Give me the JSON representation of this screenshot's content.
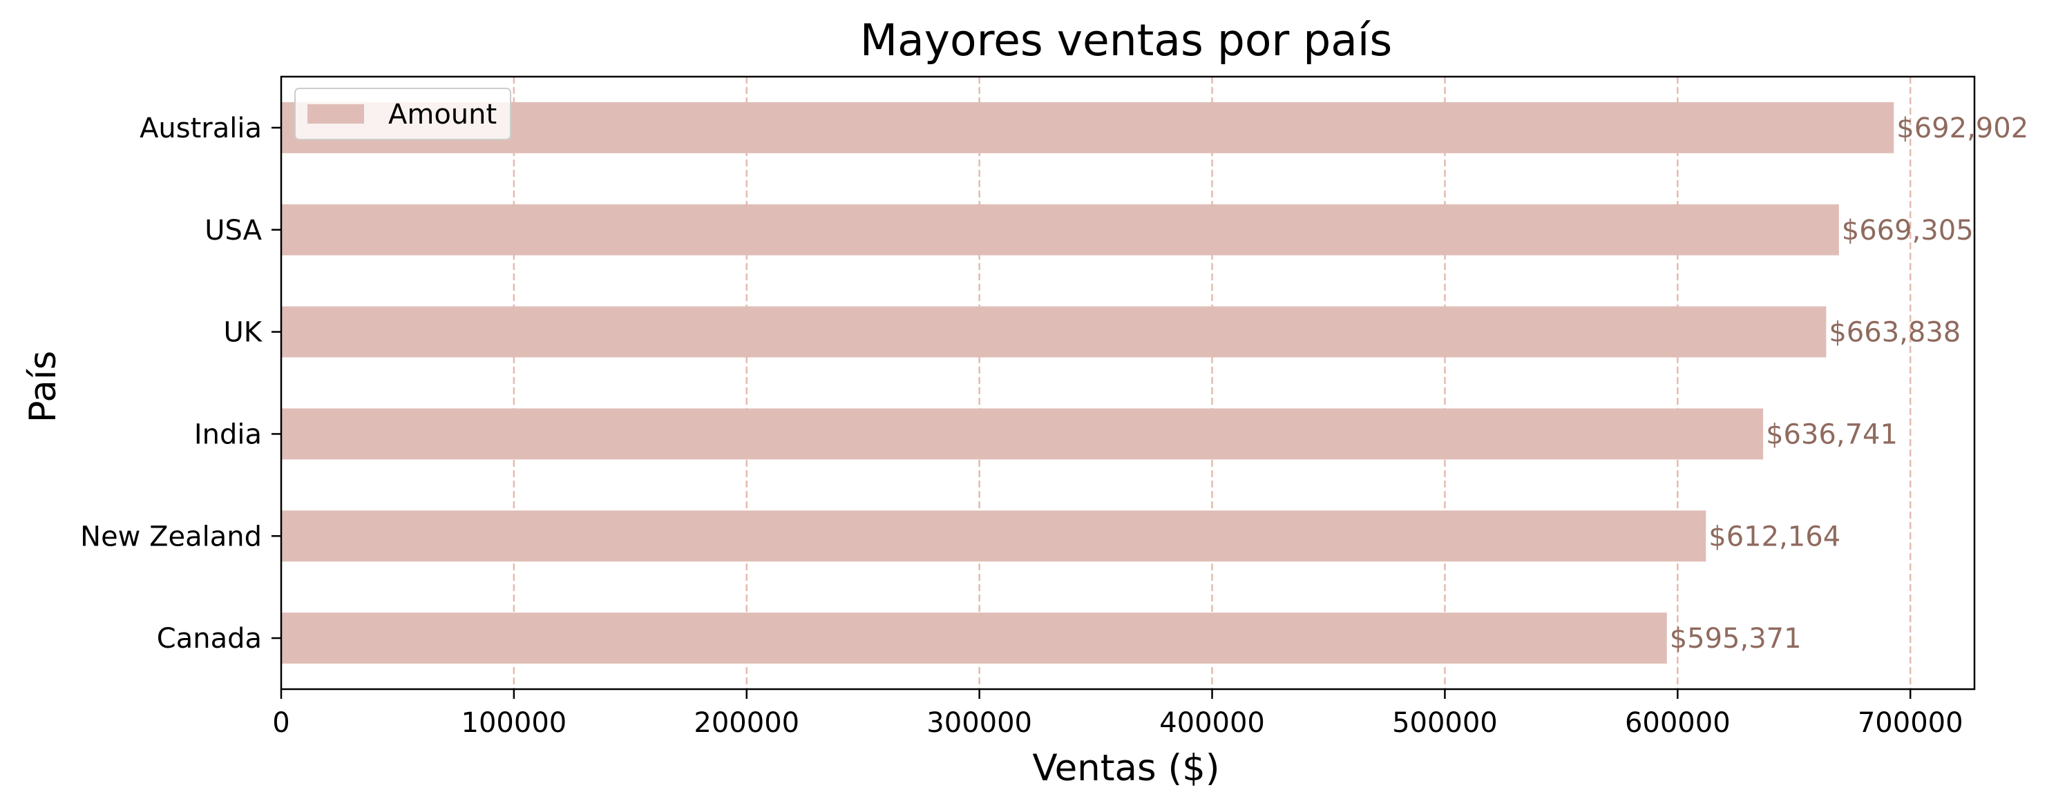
{
  "chart_data": {
    "type": "bar",
    "orientation": "horizontal",
    "title": "Mayores ventas por país",
    "xlabel": "Ventas ($)",
    "ylabel": "País",
    "categories": [
      "Australia",
      "USA",
      "UK",
      "India",
      "New Zealand",
      "Canada"
    ],
    "series": [
      {
        "name": "Amount",
        "values": [
          692902,
          669305,
          663838,
          636741,
          612164,
          595371
        ],
        "labels": [
          "$692,902",
          "$669,305",
          "$663,838",
          "$636,741",
          "$612,164",
          "$595,371"
        ]
      }
    ],
    "xlim": [
      0,
      727547
    ],
    "xticks": [
      0,
      100000,
      200000,
      300000,
      400000,
      500000,
      600000,
      700000
    ],
    "xtick_labels": [
      "0",
      "100000",
      "200000",
      "300000",
      "400000",
      "500000",
      "600000",
      "700000"
    ],
    "grid": "x-dashed",
    "legend_position": "top-left",
    "colors": {
      "bar": "#dfbdb6",
      "grid": "#d9a494",
      "data_label": "#8f6a5e",
      "axis": "#000000"
    }
  }
}
